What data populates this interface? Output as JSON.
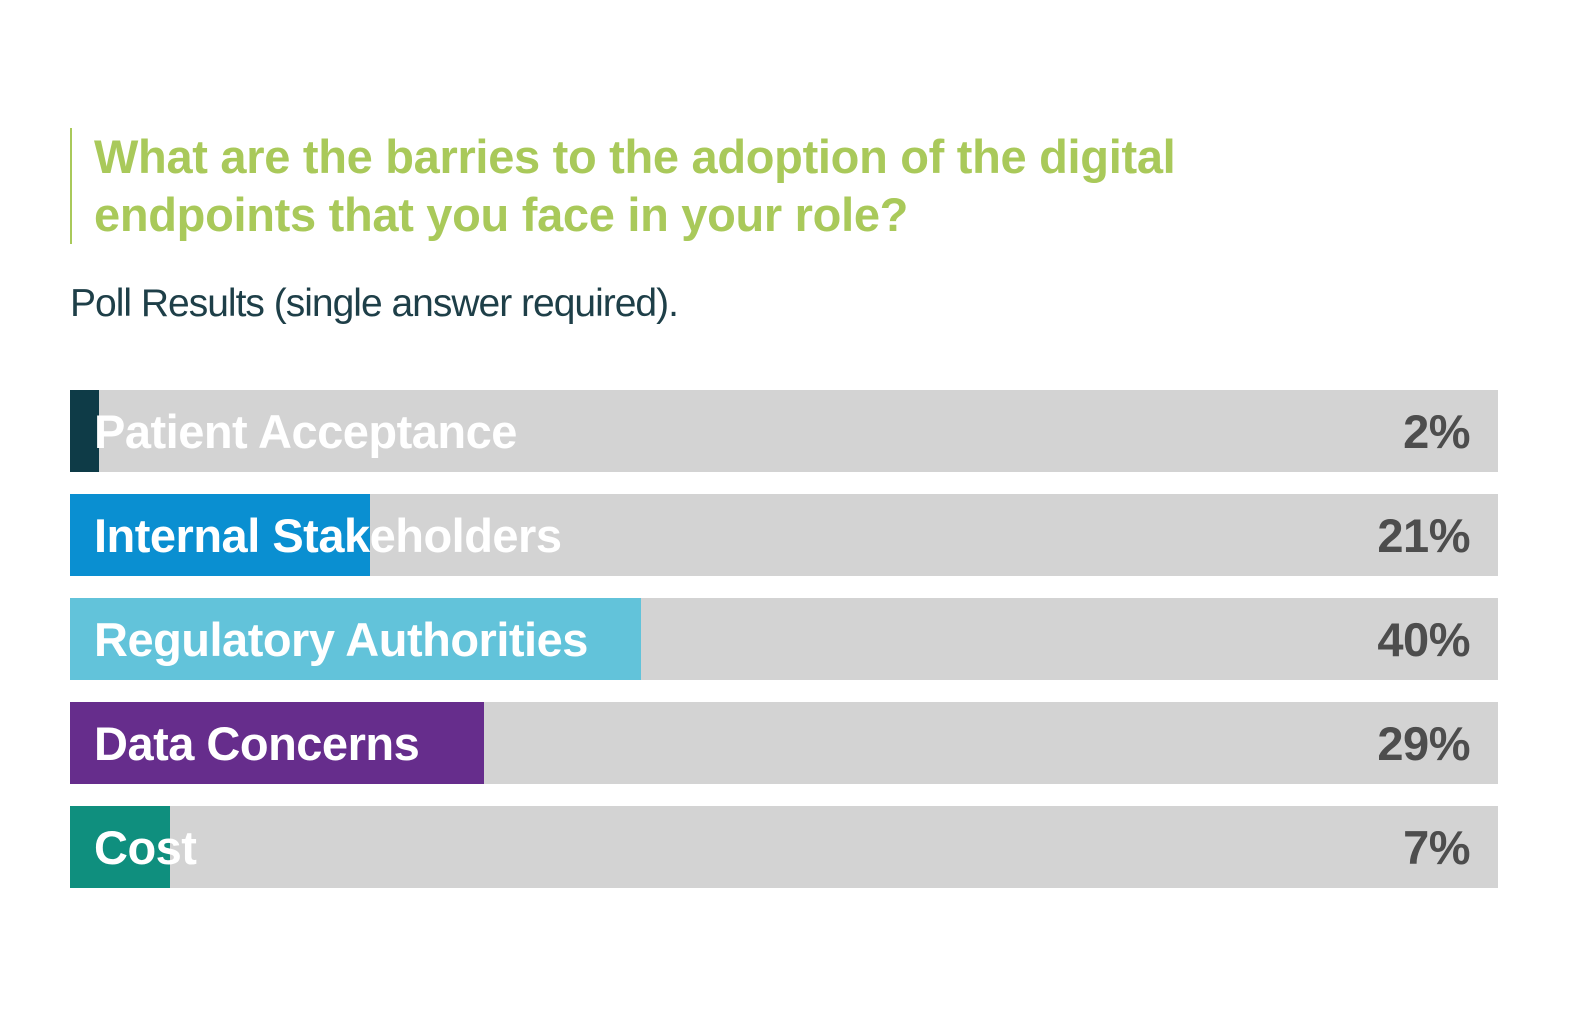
{
  "chart_data": {
    "type": "bar",
    "orientation": "horizontal",
    "title": "What are the barries to the adoption of the digital endpoints that you face in your role?",
    "subtitle": "Poll Results (single answer required).",
    "categories": [
      "Patient Acceptance",
      "Internal Stakeholders",
      "Regulatory Authorities",
      "Data Concerns",
      "Cost"
    ],
    "values": [
      2,
      21,
      40,
      29,
      7
    ],
    "value_labels": [
      "2%",
      "21%",
      "40%",
      "29%",
      "7%"
    ],
    "colors": [
      "#0e3b47",
      "#0a8fd1",
      "#62c3da",
      "#662d8c",
      "#0f8f7e"
    ],
    "track_color": "#d3d3d3",
    "xlim": [
      0,
      100
    ],
    "grid": false,
    "legend": "none"
  }
}
